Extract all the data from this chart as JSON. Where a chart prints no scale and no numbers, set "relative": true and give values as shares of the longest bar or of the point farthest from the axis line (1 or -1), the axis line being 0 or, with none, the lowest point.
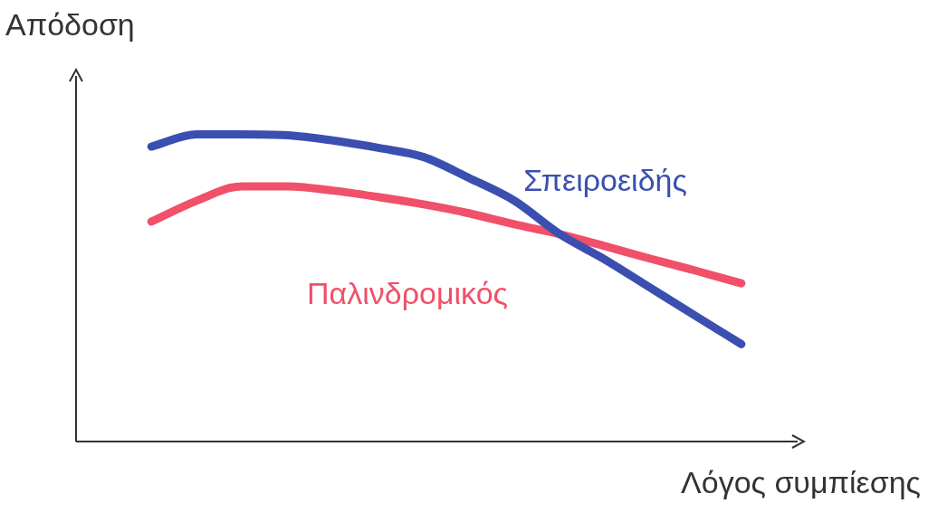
{
  "chart_data": {
    "type": "line",
    "relative": true,
    "xlabel": "Λόγος συμπίεσης",
    "ylabel": "Απόδοση",
    "categories": [
      null,
      null,
      null,
      null,
      null,
      null,
      null,
      null,
      null,
      null,
      null,
      null,
      null,
      null
    ],
    "series": [
      {
        "name": "Σπειροειδής",
        "color": "#3b4fb0",
        "values": [
          0.96,
          1.0,
          1.0,
          0.997,
          0.98,
          0.956,
          0.926,
          0.858,
          0.784,
          0.675,
          0.592,
          0.5,
          0.408,
          0.317
        ]
      },
      {
        "name": "Παλινδρομικός",
        "color": "#f0506a",
        "values": [
          0.716,
          0.784,
          0.831,
          0.831,
          0.817,
          0.796,
          0.772,
          0.743,
          0.707,
          0.675,
          0.636,
          0.595,
          0.556,
          0.515
        ]
      }
    ],
    "legend": false,
    "marker": "none",
    "line_style": "solid"
  }
}
